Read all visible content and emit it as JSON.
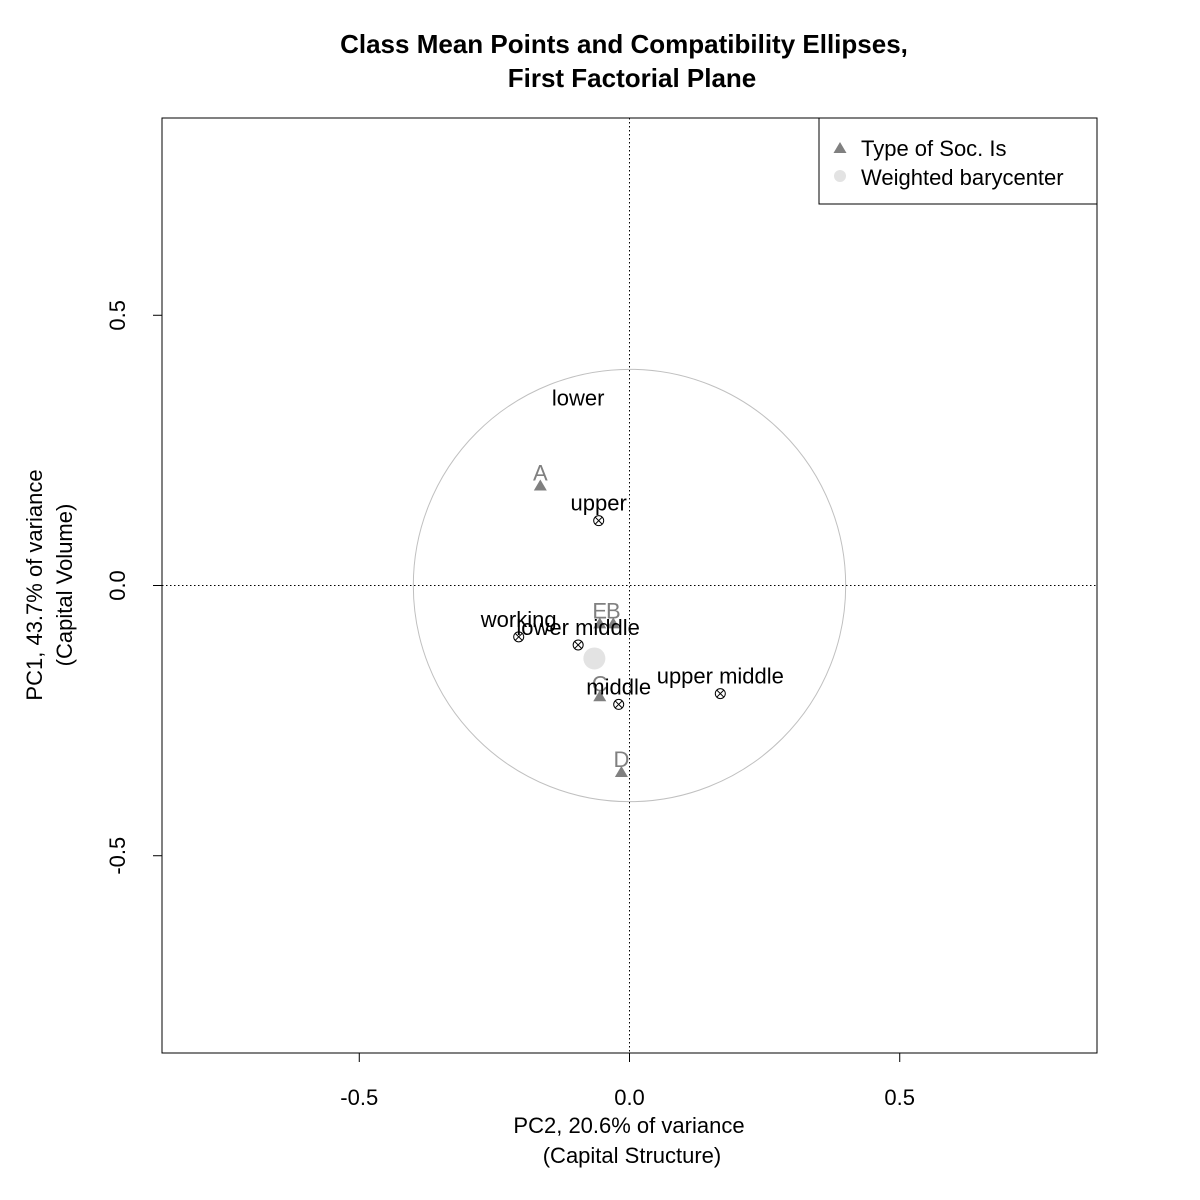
{
  "chart_data": {
    "type": "scatter",
    "title": "Class Mean Points and Compatibility Ellipses,",
    "subtitle": "First Factorial Plane",
    "xlabel": "PC2, 20.6% of variance",
    "xlabel_sub": "(Capital Structure)",
    "ylabel": "PC1, 43.7% of variance",
    "ylabel_sub": "(Capital Volume)",
    "xlim": [
      -0.865,
      0.865
    ],
    "ylim": [
      -0.865,
      0.865
    ],
    "x_ticks": [
      -0.5,
      0.0,
      0.5
    ],
    "y_ticks": [
      -0.5,
      0.0,
      0.5
    ],
    "x_tick_labels": [
      "-0.5",
      "0.0",
      "0.5"
    ],
    "y_tick_labels": [
      "-0.5",
      "0.0",
      "0.5"
    ],
    "reference_lines": {
      "x": 0,
      "y": 0,
      "style": "dotted"
    },
    "circle": {
      "center": [
        0,
        0
      ],
      "radius": 0.4,
      "color": "#c0c0c0"
    },
    "legend": {
      "position": "top-right",
      "entries": [
        {
          "label": "Type of Soc. Is",
          "marker": "triangle",
          "color": "#808080"
        },
        {
          "label": "Weighted barycenter",
          "marker": "circle",
          "color": "#e3e3e3"
        }
      ]
    },
    "barycenter": {
      "x": -0.065,
      "y": -0.135,
      "color": "#e3e3e3"
    },
    "series": [
      {
        "name": "Type of Soc. Is",
        "marker": "triangle",
        "color": "#808080",
        "points": [
          {
            "label": "A",
            "x": -0.165,
            "y": 0.185
          },
          {
            "label": "E",
            "x": -0.055,
            "y": -0.07
          },
          {
            "label": "B",
            "x": -0.03,
            "y": -0.07
          },
          {
            "label": "C",
            "x": -0.055,
            "y": -0.205
          },
          {
            "label": "D",
            "x": -0.015,
            "y": -0.345
          }
        ]
      },
      {
        "marker": "circle-x",
        "color": "#000000",
        "points": [
          {
            "label": "lower",
            "x": -0.095,
            "y": 0.315,
            "show_marker": false
          },
          {
            "label": "upper",
            "x": -0.057,
            "y": 0.12,
            "show_marker": true
          },
          {
            "label": "working",
            "x": -0.205,
            "y": -0.095,
            "show_marker": true
          },
          {
            "label": "lower middle",
            "x": -0.095,
            "y": -0.11,
            "show_marker": true
          },
          {
            "label": "middle",
            "x": -0.02,
            "y": -0.22,
            "show_marker": true
          },
          {
            "label": "upper middle",
            "x": 0.168,
            "y": -0.2,
            "show_marker": true
          }
        ]
      }
    ]
  }
}
